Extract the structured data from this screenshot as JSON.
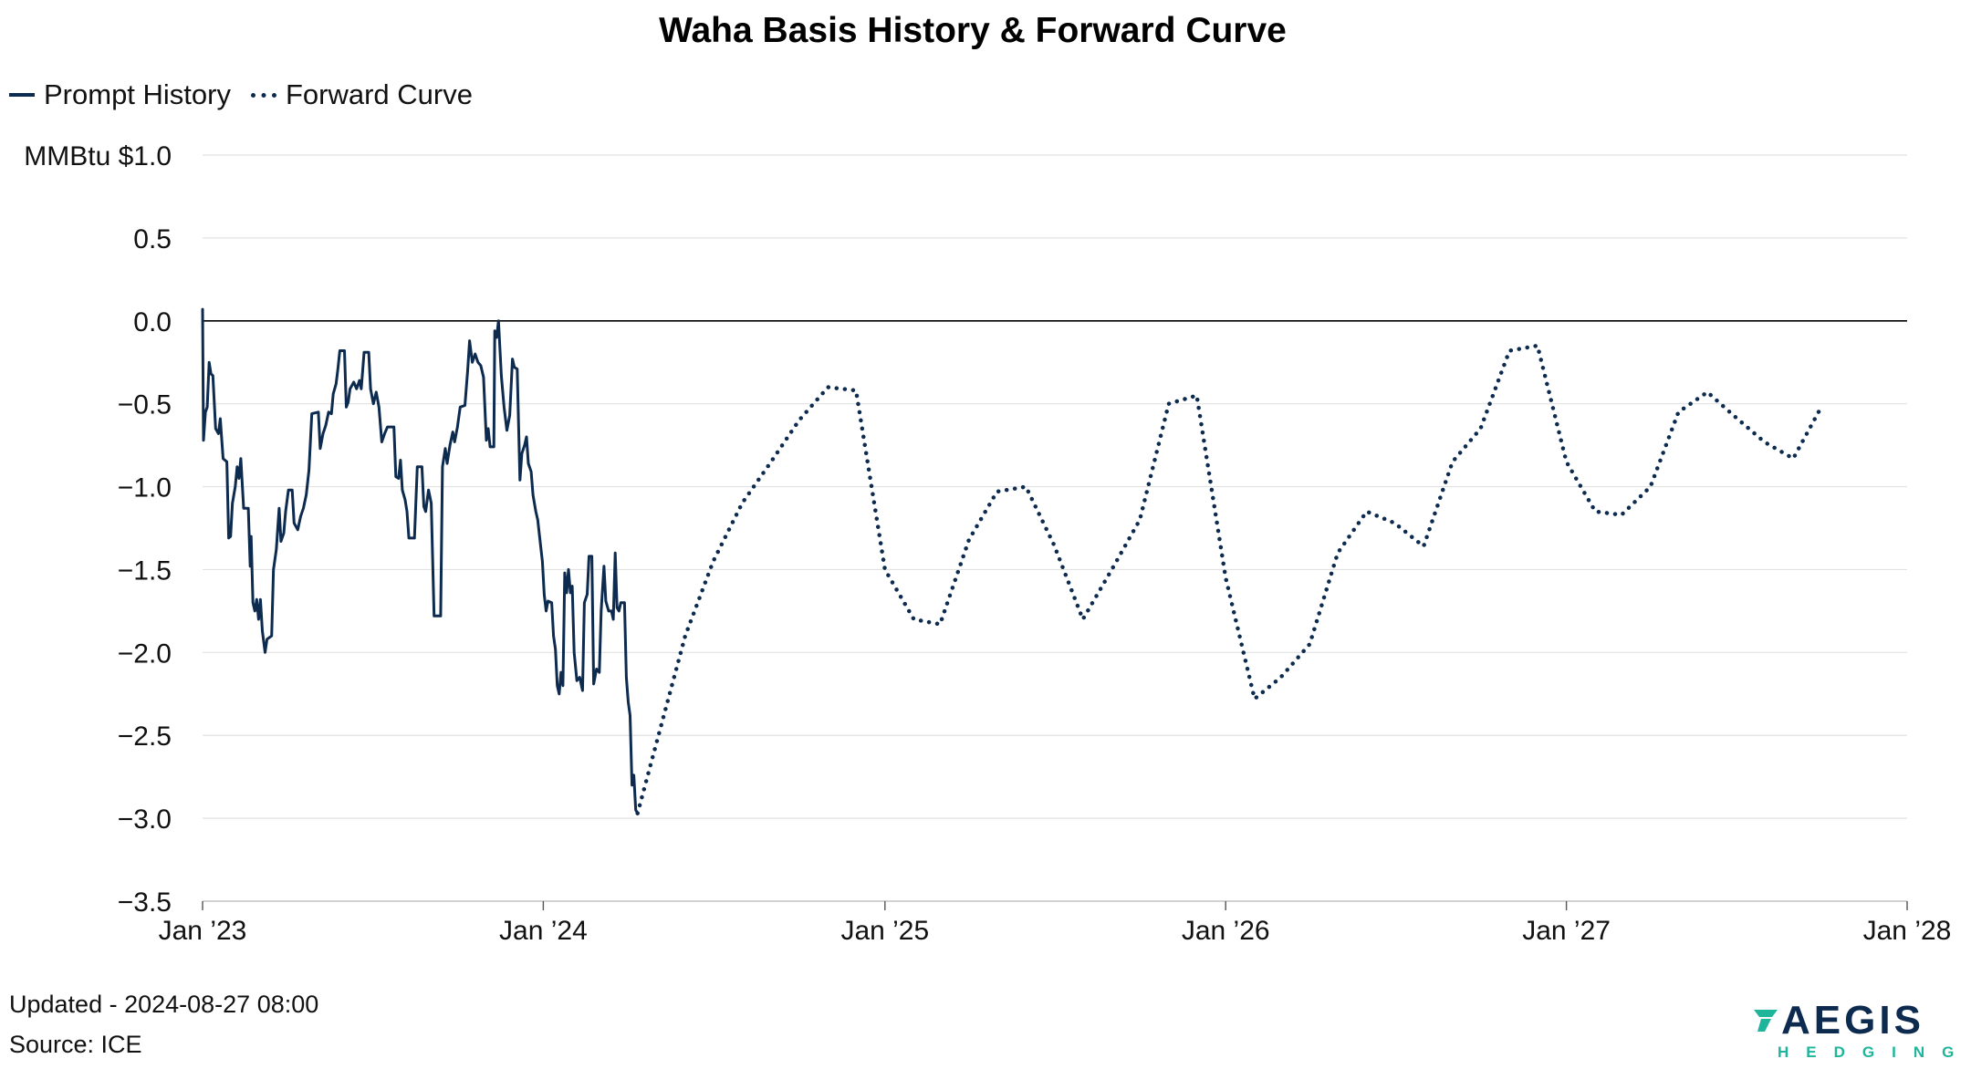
{
  "page": {
    "title": "Waha Basis History & Forward Curve",
    "updated": "Updated - 2024-08-27 08:00",
    "source": "Source: ICE",
    "logo_word": "AEGIS",
    "logo_sub": "HEDGING"
  },
  "colors": {
    "series": "#0d2a4f",
    "grid": "#e2e2e2",
    "zero_line": "#000000",
    "logo_accent": "#1fb59b"
  },
  "chart_data": {
    "type": "line",
    "title": "Waha Basis History & Forward Curve",
    "ylabel": "MMBtu",
    "y_unit_prefix": "$",
    "xlim": [
      "2023-01-01",
      "2028-01-01"
    ],
    "ylim": [
      -3.5,
      1.0
    ],
    "yticks": [
      1.0,
      0.5,
      0.0,
      -0.5,
      -1.0,
      -1.5,
      -2.0,
      -2.5,
      -3.0,
      -3.5
    ],
    "ytick_labels": [
      "MMBtu $1.0",
      "0.5",
      "0.0",
      "−0.5",
      "−1.0",
      "−1.5",
      "−2.0",
      "−2.5",
      "−3.0",
      "−3.5"
    ],
    "xticks": [
      "2023-01-01",
      "2024-01-01",
      "2025-01-01",
      "2026-01-01",
      "2027-01-01",
      "2028-01-01"
    ],
    "xtick_labels": [
      "Jan ’23",
      "Jan ’24",
      "Jan ’25",
      "Jan ’26",
      "Jan ’27",
      "Jan ’28"
    ],
    "grid": true,
    "legend_position": "top-left",
    "series": [
      {
        "name": "Prompt History",
        "style": "solid",
        "points": [
          [
            "2023-01-01",
            0.07
          ],
          [
            "2023-01-02",
            -0.72
          ],
          [
            "2023-01-04",
            -0.55
          ],
          [
            "2023-01-06",
            -0.52
          ],
          [
            "2023-01-08",
            -0.25
          ],
          [
            "2023-01-10",
            -0.32
          ],
          [
            "2023-01-12",
            -0.33
          ],
          [
            "2023-01-15",
            -0.65
          ],
          [
            "2023-01-18",
            -0.68
          ],
          [
            "2023-01-20",
            -0.59
          ],
          [
            "2023-01-23",
            -0.83
          ],
          [
            "2023-01-27",
            -0.85
          ],
          [
            "2023-01-29",
            -1.31
          ],
          [
            "2023-01-31",
            -1.3
          ],
          [
            "2023-02-02",
            -1.1
          ],
          [
            "2023-02-05",
            -1.0
          ],
          [
            "2023-02-07",
            -0.88
          ],
          [
            "2023-02-09",
            -0.95
          ],
          [
            "2023-02-11",
            -0.83
          ],
          [
            "2023-02-14",
            -1.13
          ],
          [
            "2023-02-19",
            -1.13
          ],
          [
            "2023-02-21",
            -1.48
          ],
          [
            "2023-02-22",
            -1.3
          ],
          [
            "2023-02-24",
            -1.7
          ],
          [
            "2023-02-26",
            -1.75
          ],
          [
            "2023-02-28",
            -1.68
          ],
          [
            "2023-03-02",
            -1.8
          ],
          [
            "2023-03-04",
            -1.68
          ],
          [
            "2023-03-06",
            -1.87
          ],
          [
            "2023-03-09",
            -2.0
          ],
          [
            "2023-03-11",
            -1.92
          ],
          [
            "2023-03-16",
            -1.9
          ],
          [
            "2023-03-18",
            -1.5
          ],
          [
            "2023-03-21",
            -1.38
          ],
          [
            "2023-03-24",
            -1.13
          ],
          [
            "2023-03-26",
            -1.33
          ],
          [
            "2023-03-29",
            -1.28
          ],
          [
            "2023-03-31",
            -1.15
          ],
          [
            "2023-04-03",
            -1.02
          ],
          [
            "2023-04-07",
            -1.02
          ],
          [
            "2023-04-09",
            -1.22
          ],
          [
            "2023-04-13",
            -1.26
          ],
          [
            "2023-04-16",
            -1.18
          ],
          [
            "2023-04-19",
            -1.13
          ],
          [
            "2023-04-22",
            -1.05
          ],
          [
            "2023-04-25",
            -0.9
          ],
          [
            "2023-04-28",
            -0.56
          ],
          [
            "2023-05-05",
            -0.55
          ],
          [
            "2023-05-07",
            -0.77
          ],
          [
            "2023-05-10",
            -0.68
          ],
          [
            "2023-05-13",
            -0.63
          ],
          [
            "2023-05-16",
            -0.55
          ],
          [
            "2023-05-19",
            -0.56
          ],
          [
            "2023-05-21",
            -0.44
          ],
          [
            "2023-05-24",
            -0.38
          ],
          [
            "2023-05-26",
            -0.29
          ],
          [
            "2023-05-28",
            -0.18
          ],
          [
            "2023-06-02",
            -0.18
          ],
          [
            "2023-06-04",
            -0.52
          ],
          [
            "2023-06-06",
            -0.49
          ],
          [
            "2023-06-08",
            -0.41
          ],
          [
            "2023-06-12",
            -0.37
          ],
          [
            "2023-06-15",
            -0.41
          ],
          [
            "2023-06-18",
            -0.36
          ],
          [
            "2023-06-20",
            -0.41
          ],
          [
            "2023-06-23",
            -0.19
          ],
          [
            "2023-06-28",
            -0.19
          ],
          [
            "2023-06-30",
            -0.41
          ],
          [
            "2023-07-03",
            -0.5
          ],
          [
            "2023-07-06",
            -0.43
          ],
          [
            "2023-07-09",
            -0.52
          ],
          [
            "2023-07-12",
            -0.73
          ],
          [
            "2023-07-15",
            -0.68
          ],
          [
            "2023-07-18",
            -0.64
          ],
          [
            "2023-07-25",
            -0.64
          ],
          [
            "2023-07-27",
            -0.94
          ],
          [
            "2023-07-30",
            -0.95
          ],
          [
            "2023-08-01",
            -0.84
          ],
          [
            "2023-08-03",
            -1.02
          ],
          [
            "2023-08-06",
            -1.08
          ],
          [
            "2023-08-08",
            -1.15
          ],
          [
            "2023-08-10",
            -1.31
          ],
          [
            "2023-08-16",
            -1.31
          ],
          [
            "2023-08-19",
            -0.88
          ],
          [
            "2023-08-24",
            -0.88
          ],
          [
            "2023-08-26",
            -1.12
          ],
          [
            "2023-08-28",
            -1.15
          ],
          [
            "2023-08-31",
            -1.02
          ],
          [
            "2023-09-03",
            -1.1
          ],
          [
            "2023-09-06",
            -1.78
          ],
          [
            "2023-09-13",
            -1.78
          ],
          [
            "2023-09-15",
            -0.88
          ],
          [
            "2023-09-18",
            -0.77
          ],
          [
            "2023-09-20",
            -0.86
          ],
          [
            "2023-09-23",
            -0.75
          ],
          [
            "2023-09-26",
            -0.67
          ],
          [
            "2023-09-28",
            -0.73
          ],
          [
            "2023-10-01",
            -0.64
          ],
          [
            "2023-10-04",
            -0.52
          ],
          [
            "2023-10-09",
            -0.51
          ],
          [
            "2023-10-12",
            -0.3
          ],
          [
            "2023-10-14",
            -0.12
          ],
          [
            "2023-10-17",
            -0.25
          ],
          [
            "2023-10-20",
            -0.2
          ],
          [
            "2023-10-23",
            -0.25
          ],
          [
            "2023-10-26",
            -0.27
          ],
          [
            "2023-10-29",
            -0.34
          ],
          [
            "2023-11-01",
            -0.72
          ],
          [
            "2023-11-03",
            -0.65
          ],
          [
            "2023-11-05",
            -0.76
          ],
          [
            "2023-11-09",
            -0.76
          ],
          [
            "2023-11-10",
            -0.06
          ],
          [
            "2023-11-12",
            -0.1
          ],
          [
            "2023-11-14",
            0.0
          ],
          [
            "2023-11-17",
            -0.33
          ],
          [
            "2023-11-20",
            -0.52
          ],
          [
            "2023-11-23",
            -0.66
          ],
          [
            "2023-11-26",
            -0.57
          ],
          [
            "2023-11-29",
            -0.23
          ],
          [
            "2023-12-01",
            -0.28
          ],
          [
            "2023-12-04",
            -0.29
          ],
          [
            "2023-12-07",
            -0.96
          ],
          [
            "2023-12-09",
            -0.8
          ],
          [
            "2023-12-12",
            -0.75
          ],
          [
            "2023-12-14",
            -0.7
          ],
          [
            "2023-12-16",
            -0.86
          ],
          [
            "2023-12-19",
            -0.91
          ],
          [
            "2023-12-21",
            -1.05
          ],
          [
            "2023-12-24",
            -1.15
          ],
          [
            "2023-12-26",
            -1.2
          ],
          [
            "2023-12-28",
            -1.3
          ],
          [
            "2023-12-31",
            -1.45
          ],
          [
            "2024-01-02",
            -1.65
          ],
          [
            "2024-01-04",
            -1.75
          ],
          [
            "2024-01-06",
            -1.69
          ],
          [
            "2024-01-10",
            -1.7
          ],
          [
            "2024-01-12",
            -1.9
          ],
          [
            "2024-01-14",
            -1.98
          ],
          [
            "2024-01-16",
            -2.2
          ],
          [
            "2024-01-18",
            -2.25
          ],
          [
            "2024-01-20",
            -2.12
          ],
          [
            "2024-01-22",
            -2.2
          ],
          [
            "2024-01-24",
            -1.52
          ],
          [
            "2024-01-26",
            -1.64
          ],
          [
            "2024-01-28",
            -1.5
          ],
          [
            "2024-01-30",
            -1.64
          ],
          [
            "2024-02-01",
            -1.6
          ],
          [
            "2024-02-03",
            -2.0
          ],
          [
            "2024-02-06",
            -2.17
          ],
          [
            "2024-02-09",
            -2.15
          ],
          [
            "2024-02-12",
            -2.23
          ],
          [
            "2024-02-14",
            -1.7
          ],
          [
            "2024-02-17",
            -1.65
          ],
          [
            "2024-02-19",
            -1.42
          ],
          [
            "2024-02-22",
            -1.42
          ],
          [
            "2024-02-24",
            -2.19
          ],
          [
            "2024-02-27",
            -2.1
          ],
          [
            "2024-03-01",
            -2.12
          ],
          [
            "2024-03-03",
            -1.75
          ],
          [
            "2024-03-06",
            -1.48
          ],
          [
            "2024-03-08",
            -1.69
          ],
          [
            "2024-03-11",
            -1.75
          ],
          [
            "2024-03-14",
            -1.75
          ],
          [
            "2024-03-16",
            -1.8
          ],
          [
            "2024-03-18",
            -1.4
          ],
          [
            "2024-03-20",
            -1.73
          ],
          [
            "2024-03-22",
            -1.75
          ],
          [
            "2024-03-24",
            -1.7
          ],
          [
            "2024-03-28",
            -1.7
          ],
          [
            "2024-03-30",
            -2.15
          ],
          [
            "2024-04-01",
            -2.3
          ],
          [
            "2024-04-03",
            -2.38
          ],
          [
            "2024-04-05",
            -2.8
          ],
          [
            "2024-04-07",
            -2.74
          ],
          [
            "2024-04-09",
            -2.95
          ],
          [
            "2024-04-11",
            -2.97
          ]
        ]
      },
      {
        "name": "Forward Curve",
        "style": "dotted",
        "points": [
          [
            "2024-04-11",
            -2.97
          ],
          [
            "2024-06-01",
            -1.9
          ],
          [
            "2024-07-01",
            -1.45
          ],
          [
            "2024-08-01",
            -1.1
          ],
          [
            "2024-09-01",
            -0.85
          ],
          [
            "2024-10-01",
            -0.6
          ],
          [
            "2024-11-01",
            -0.4
          ],
          [
            "2024-12-01",
            -0.42
          ],
          [
            "2025-01-01",
            -1.5
          ],
          [
            "2025-02-01",
            -1.8
          ],
          [
            "2025-03-01",
            -1.83
          ],
          [
            "2025-04-01",
            -1.32
          ],
          [
            "2025-05-01",
            -1.03
          ],
          [
            "2025-06-01",
            -1.0
          ],
          [
            "2025-07-01",
            -1.35
          ],
          [
            "2025-08-01",
            -1.8
          ],
          [
            "2025-09-01",
            -1.5
          ],
          [
            "2025-10-01",
            -1.2
          ],
          [
            "2025-11-01",
            -0.5
          ],
          [
            "2025-12-01",
            -0.45
          ],
          [
            "2026-01-01",
            -1.55
          ],
          [
            "2026-02-01",
            -2.28
          ],
          [
            "2026-03-01",
            -2.15
          ],
          [
            "2026-04-01",
            -1.95
          ],
          [
            "2026-05-01",
            -1.4
          ],
          [
            "2026-06-01",
            -1.15
          ],
          [
            "2026-07-01",
            -1.22
          ],
          [
            "2026-08-01",
            -1.36
          ],
          [
            "2026-09-01",
            -0.85
          ],
          [
            "2026-10-01",
            -0.65
          ],
          [
            "2026-11-01",
            -0.18
          ],
          [
            "2026-12-01",
            -0.15
          ],
          [
            "2027-01-01",
            -0.85
          ],
          [
            "2027-02-01",
            -1.15
          ],
          [
            "2027-03-01",
            -1.17
          ],
          [
            "2027-04-01",
            -1.0
          ],
          [
            "2027-05-01",
            -0.55
          ],
          [
            "2027-06-01",
            -0.43
          ],
          [
            "2027-07-01",
            -0.58
          ],
          [
            "2027-08-01",
            -0.73
          ],
          [
            "2027-09-01",
            -0.83
          ],
          [
            "2027-10-01",
            -0.52
          ]
        ]
      }
    ]
  }
}
